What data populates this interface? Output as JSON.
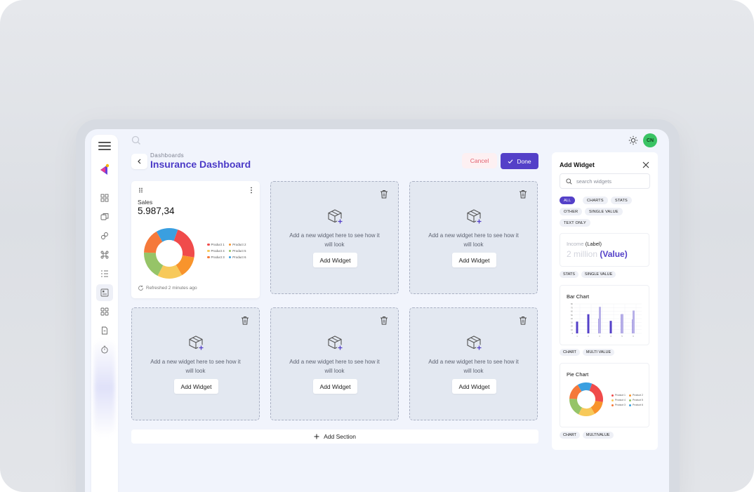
{
  "header": {
    "breadcrumb": "Dashboards",
    "title": "Insurance Dashboard",
    "cancel_label": "Cancel",
    "done_label": "Done"
  },
  "topbar": {
    "avatar_initials": "CN"
  },
  "sidebar": {
    "icons": [
      "dashboard-icon",
      "layers-icon",
      "link-icon",
      "nodes-icon",
      "list-icon",
      "report-icon",
      "grid-icon",
      "document-icon",
      "timer-icon"
    ],
    "active_index": 5
  },
  "sales_widget": {
    "title": "Sales",
    "value": "5.987,34",
    "refreshed": "Refreshed 2 minutes ago",
    "chart_data": {
      "type": "pie",
      "categories": [
        "Product 1",
        "Product 2",
        "Product 4",
        "Product 5",
        "Product 3",
        "Product 6"
      ],
      "values": [
        22,
        14,
        16,
        18,
        16,
        14
      ],
      "colors": [
        "#f04b4b",
        "#f8942c",
        "#f7c95a",
        "#96c468",
        "#f5793a",
        "#3a9fe0"
      ]
    }
  },
  "placeholders": {
    "hint": "Add a new widget here to see how it will look",
    "add_label": "Add Widget"
  },
  "add_section_label": "Add Section",
  "panel": {
    "title": "Add Widget",
    "search_placeholder": "search widgets",
    "chips": [
      "ALL",
      "CHARTS",
      "STATS",
      "OTHER",
      "SINGLE VALUE",
      "TEXT ONLY"
    ],
    "stat_card": {
      "label_prefix": "Income",
      "label_suffix": "(Label)",
      "value_prefix": "2 million",
      "value_suffix": "(Value)",
      "tags": [
        "STATS",
        "SINGLE VALUE"
      ]
    },
    "bar_card": {
      "title": "Bar Chart",
      "tags": [
        "CHART",
        "MULTI VALUE"
      ],
      "chart_data": {
        "type": "bar",
        "categories": [
          "1",
          "2",
          "3",
          "4",
          "5",
          "6"
        ],
        "series": [
          {
            "values": [
              32,
              52,
              40,
              34,
              52,
              38
            ]
          },
          {
            "values": [
              0,
              0,
              72,
              0,
              52,
              62
            ]
          }
        ],
        "ylim": [
          0,
          80
        ],
        "y_ticks": [
          "80",
          "70",
          "60",
          "50",
          "40",
          "30",
          "20",
          "10",
          "0"
        ],
        "colors": [
          "#5440c8",
          "#b7b0e8"
        ]
      }
    },
    "pie_card": {
      "title": "Pie Chart",
      "tags": [
        "CHART",
        "MULTIVALUE"
      ],
      "chart_data": {
        "type": "pie",
        "categories": [
          "Product 1",
          "Product 2",
          "Product 4",
          "Product 5",
          "Product 3",
          "Product 6"
        ],
        "values": [
          22,
          14,
          16,
          18,
          16,
          14
        ],
        "colors": [
          "#f04b4b",
          "#f8942c",
          "#f7c95a",
          "#96c468",
          "#f5793a",
          "#3a9fe0"
        ]
      }
    }
  }
}
